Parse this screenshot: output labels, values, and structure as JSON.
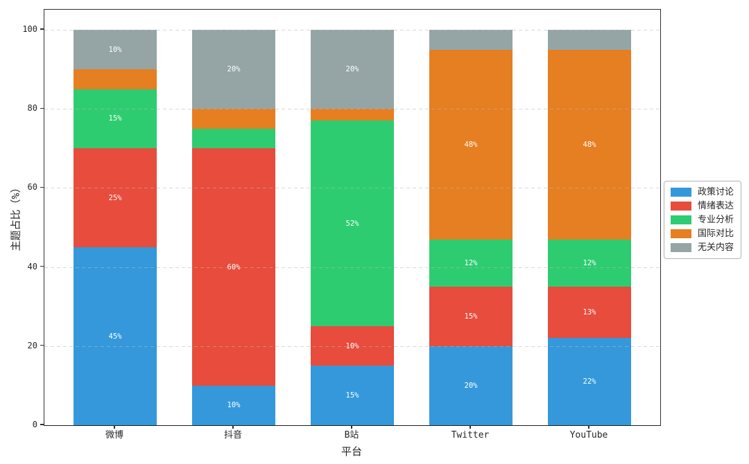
{
  "chart_data": {
    "type": "bar",
    "stacked": true,
    "title": "",
    "xlabel": "平台",
    "ylabel": "主题占比（%）",
    "categories": [
      "微博",
      "抖音",
      "B站",
      "Twitter",
      "YouTube"
    ],
    "series": [
      {
        "name": "政策讨论",
        "color": "#3498db",
        "values": [
          45,
          10,
          15,
          20,
          22
        ]
      },
      {
        "name": "情绪表达",
        "color": "#e74c3c",
        "values": [
          25,
          60,
          10,
          15,
          13
        ]
      },
      {
        "name": "专业分析",
        "color": "#2ecc71",
        "values": [
          15,
          5,
          52,
          12,
          12
        ]
      },
      {
        "name": "国际对比",
        "color": "#e67e22",
        "values": [
          5,
          5,
          3,
          48,
          48
        ]
      },
      {
        "name": "无关内容",
        "color": "#95a5a6",
        "values": [
          10,
          20,
          20,
          5,
          5
        ]
      }
    ],
    "y_ticks": [
      0,
      20,
      40,
      60,
      80,
      100
    ],
    "ylim": [
      0,
      105
    ],
    "grid": "horizontal-dashed",
    "legend_position": "outside-right",
    "label_format": "{value}%",
    "label_min_value": 10
  }
}
